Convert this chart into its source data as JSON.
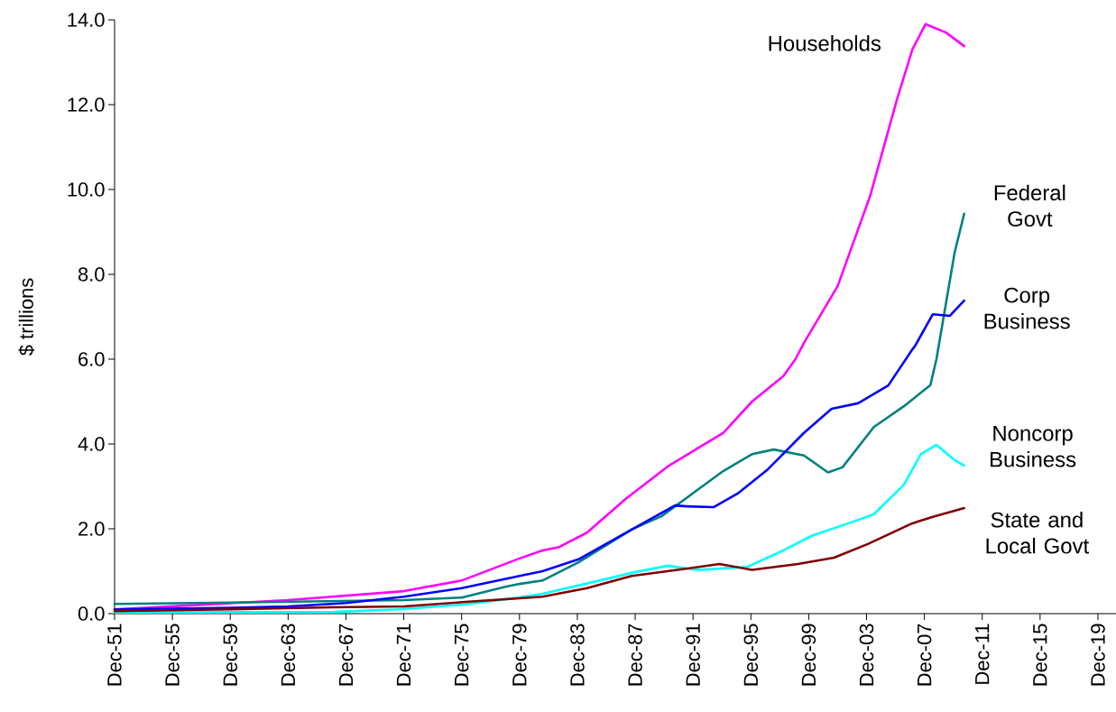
{
  "chart_data": {
    "type": "line",
    "ylabel": "$ trillions",
    "line_style": "solid",
    "xlim": [
      "1951-12",
      "2021-03"
    ],
    "ylim": [
      0,
      14
    ],
    "xticks": [
      {
        "value": "1951-12",
        "label": "Dec-51"
      },
      {
        "value": "1955-12",
        "label": "Dec-55"
      },
      {
        "value": "1959-12",
        "label": "Dec-59"
      },
      {
        "value": "1963-12",
        "label": "Dec-63"
      },
      {
        "value": "1967-12",
        "label": "Dec-67"
      },
      {
        "value": "1971-12",
        "label": "Dec-71"
      },
      {
        "value": "1975-12",
        "label": "Dec-75"
      },
      {
        "value": "1979-12",
        "label": "Dec-79"
      },
      {
        "value": "1983-12",
        "label": "Dec-83"
      },
      {
        "value": "1987-12",
        "label": "Dec-87"
      },
      {
        "value": "1991-12",
        "label": "Dec-91"
      },
      {
        "value": "1995-12",
        "label": "Dec-95"
      },
      {
        "value": "1999-12",
        "label": "Dec-99"
      },
      {
        "value": "2003-12",
        "label": "Dec-03"
      },
      {
        "value": "2007-12",
        "label": "Dec-07"
      },
      {
        "value": "2011-12",
        "label": "Dec-11"
      },
      {
        "value": "2015-12",
        "label": "Dec-15"
      },
      {
        "value": "2019-12",
        "label": "Dec-19"
      }
    ],
    "yticks": [
      {
        "value": 0,
        "label": "0.0"
      },
      {
        "value": 2,
        "label": "2.0"
      },
      {
        "value": 4,
        "label": "4.0"
      },
      {
        "value": 6,
        "label": "6.0"
      },
      {
        "value": 8,
        "label": "8.0"
      },
      {
        "value": 10,
        "label": "10.0"
      },
      {
        "value": 12,
        "label": "12.0"
      },
      {
        "value": 14,
        "label": "14.0"
      }
    ],
    "series": [
      {
        "name": "Households",
        "color": "#ff00ff",
        "x": [
          "1951-12",
          "1954-08",
          "1963-12",
          "1971-12",
          "1975-12",
          "1979-12",
          "1981-07",
          "1982-09",
          "1984-08",
          "1987-04",
          "1990-03",
          "1992-04",
          "1994-01",
          "1996-01",
          "1998-03",
          "1999-01",
          "1999-08",
          "2001-12",
          "2004-03",
          "2006-01",
          "2007-02",
          "2008-01",
          "2009-06",
          "2010-09"
        ],
        "values": [
          0.1,
          0.15,
          0.32,
          0.53,
          0.78,
          1.3,
          1.49,
          1.57,
          1.91,
          2.7,
          3.47,
          3.9,
          4.26,
          5.0,
          5.6,
          6.0,
          6.38,
          7.72,
          9.85,
          12.1,
          13.3,
          13.9,
          13.7,
          13.38
        ]
      },
      {
        "name": "Federal Govt",
        "color": "#008080",
        "x": [
          "1951-12",
          "1962-02",
          "1971-12",
          "1975-12",
          "1979-01",
          "1979-12",
          "1981-07",
          "1984-01",
          "1987-09",
          "1989-10",
          "1991-12",
          "1994-01",
          "1996-01",
          "1997-07",
          "1999-08",
          "2001-04",
          "2002-04",
          "2004-06",
          "2006-07",
          "2008-05",
          "2008-10",
          "2009-01",
          "2010-01",
          "2010-09"
        ],
        "values": [
          0.23,
          0.27,
          0.32,
          0.38,
          0.64,
          0.7,
          0.78,
          1.21,
          1.98,
          2.3,
          2.84,
          3.36,
          3.76,
          3.87,
          3.73,
          3.33,
          3.45,
          4.4,
          4.89,
          5.39,
          6.0,
          6.5,
          8.5,
          9.43
        ]
      },
      {
        "name": "Corp Business",
        "color": "#0000ff",
        "x": [
          "1951-12",
          "1959-12",
          "1963-12",
          "1967-12",
          "1971-12",
          "1975-12",
          "1979-12",
          "1981-07",
          "1984-01",
          "1987-09",
          "1990-09",
          "1991-07",
          "1993-05",
          "1995-01",
          "1997-02",
          "1999-08",
          "2001-07",
          "2003-05",
          "2005-06",
          "2007-02",
          "2007-04",
          "2008-07",
          "2009-09",
          "2010-09"
        ],
        "values": [
          0.1,
          0.14,
          0.17,
          0.25,
          0.4,
          0.6,
          0.89,
          1.0,
          1.28,
          1.98,
          2.55,
          2.53,
          2.51,
          2.83,
          3.4,
          4.26,
          4.83,
          4.96,
          5.38,
          6.23,
          6.3,
          7.06,
          7.02,
          7.38
        ]
      },
      {
        "name": "Noncorp Business",
        "color": "#00ffff",
        "x": [
          "1951-12",
          "1967-02",
          "1971-07",
          "1975-12",
          "1979-12",
          "1981-07",
          "1984-08",
          "1987-09",
          "1990-03",
          "1992-04",
          "1995-09",
          "1998-03",
          "2000-03",
          "2002-09",
          "2004-06",
          "2006-07",
          "2007-09",
          "2008-10",
          "2010-01",
          "2010-09"
        ],
        "values": [
          0.03,
          0.04,
          0.1,
          0.21,
          0.38,
          0.47,
          0.71,
          0.96,
          1.13,
          1.03,
          1.1,
          1.49,
          1.84,
          2.13,
          2.34,
          3.04,
          3.76,
          3.98,
          3.62,
          3.49
        ]
      },
      {
        "name": "State and Local Govt",
        "color": "#800000",
        "x": [
          "1951-12",
          "1959-12",
          "1966-11",
          "1971-12",
          "1975-12",
          "1979-12",
          "1981-07",
          "1984-08",
          "1987-09",
          "1990-11",
          "1993-10",
          "1996-01",
          "1999-03",
          "2001-09",
          "2004-01",
          "2007-02",
          "2008-07",
          "2010-09"
        ],
        "values": [
          0.06,
          0.1,
          0.15,
          0.17,
          0.27,
          0.36,
          0.4,
          0.6,
          0.89,
          1.03,
          1.17,
          1.03,
          1.17,
          1.32,
          1.64,
          2.13,
          2.28,
          2.49
        ]
      }
    ]
  }
}
